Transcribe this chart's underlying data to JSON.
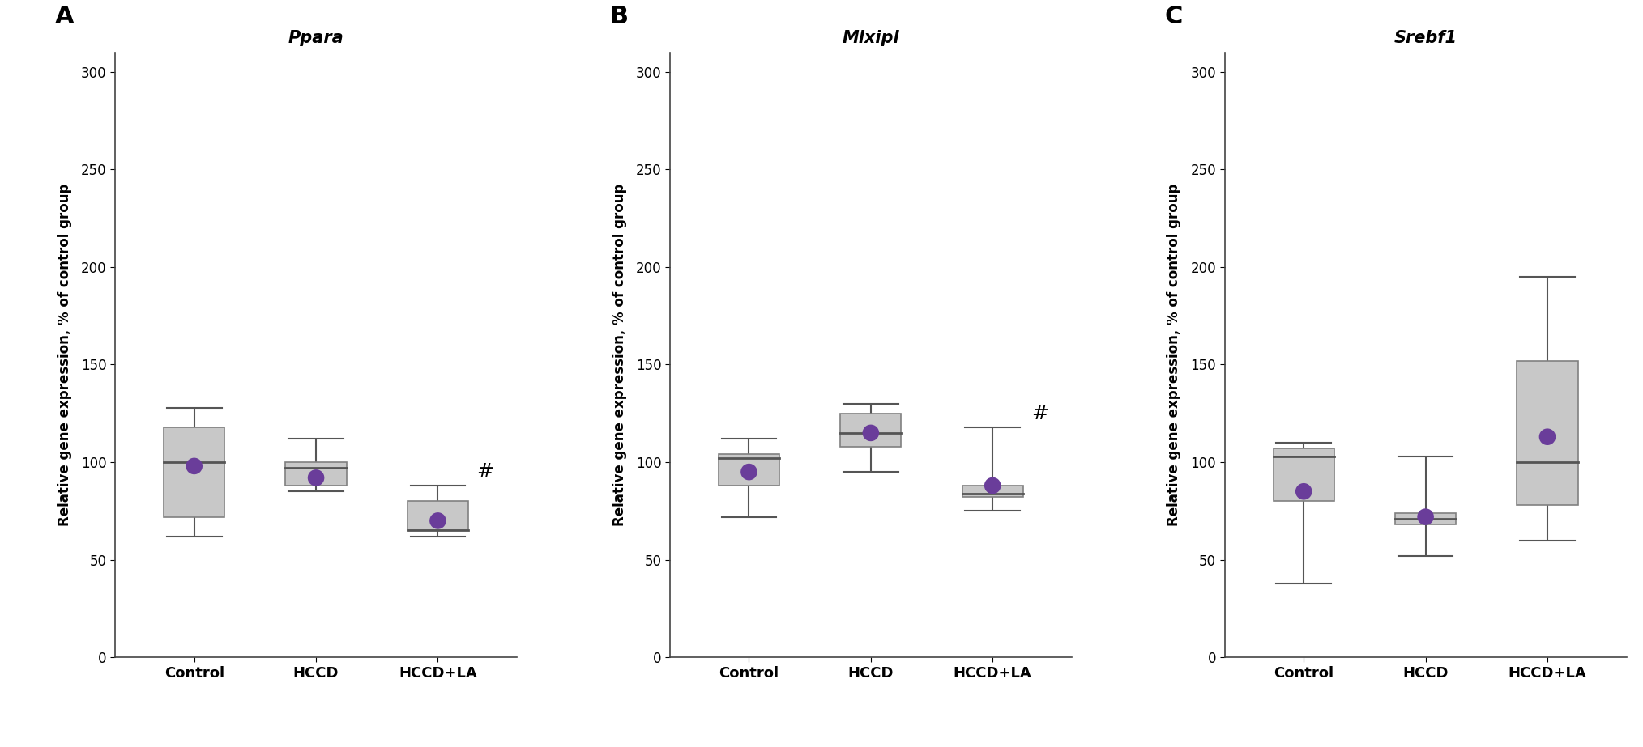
{
  "panels": [
    {
      "label": "A",
      "title": "Ppara",
      "ylabel": "Relative gene expression, % of control group",
      "groups": [
        "Control",
        "HCCD",
        "HCCD+LA"
      ],
      "boxes": [
        {
          "whisker_low": 62,
          "q1": 72,
          "median": 100,
          "q3": 118,
          "whisker_high": 128,
          "mean": 98
        },
        {
          "whisker_low": 85,
          "q1": 88,
          "median": 97,
          "q3": 100,
          "whisker_high": 112,
          "mean": 92
        },
        {
          "whisker_low": 62,
          "q1": 65,
          "median": 65,
          "q3": 80,
          "whisker_high": 88,
          "mean": 70
        }
      ],
      "hash_group": 2,
      "ylim": [
        0,
        310
      ],
      "yticks": [
        0,
        50,
        100,
        150,
        200,
        250,
        300
      ]
    },
    {
      "label": "B",
      "title": "Mlxipl",
      "ylabel": "Relative gene expression, % of control group",
      "groups": [
        "Control",
        "HCCD",
        "HCCD+LA"
      ],
      "boxes": [
        {
          "whisker_low": 72,
          "q1": 88,
          "median": 102,
          "q3": 104,
          "whisker_high": 112,
          "mean": 95
        },
        {
          "whisker_low": 95,
          "q1": 108,
          "median": 115,
          "q3": 125,
          "whisker_high": 130,
          "mean": 115
        },
        {
          "whisker_low": 75,
          "q1": 82,
          "median": 84,
          "q3": 88,
          "whisker_high": 118,
          "mean": 88
        }
      ],
      "hash_group": 2,
      "ylim": [
        0,
        310
      ],
      "yticks": [
        0,
        50,
        100,
        150,
        200,
        250,
        300
      ]
    },
    {
      "label": "C",
      "title": "Srebf1",
      "ylabel": "Relative gene expression, % of control group",
      "groups": [
        "Control",
        "HCCD",
        "HCCD+LA"
      ],
      "boxes": [
        {
          "whisker_low": 38,
          "q1": 80,
          "median": 103,
          "q3": 107,
          "whisker_high": 110,
          "mean": 85
        },
        {
          "whisker_low": 52,
          "q1": 68,
          "median": 71,
          "q3": 74,
          "whisker_high": 103,
          "mean": 72
        },
        {
          "whisker_low": 60,
          "q1": 78,
          "median": 100,
          "q3": 152,
          "whisker_high": 195,
          "mean": 113
        }
      ],
      "hash_group": -1,
      "ylim": [
        0,
        310
      ],
      "yticks": [
        0,
        50,
        100,
        150,
        200,
        250,
        300
      ]
    }
  ],
  "box_color": "#c8c8c8",
  "box_edge_color": "#808080",
  "median_line_color": "#555555",
  "whisker_color": "#555555",
  "mean_dot_color": "#6a3d9a",
  "box_width": 0.5,
  "background_color": "#ffffff",
  "panel_label_fontsize": 22,
  "title_fontsize": 15,
  "tick_fontsize": 12,
  "ylabel_fontsize": 12,
  "xlabel_fontsize": 13
}
